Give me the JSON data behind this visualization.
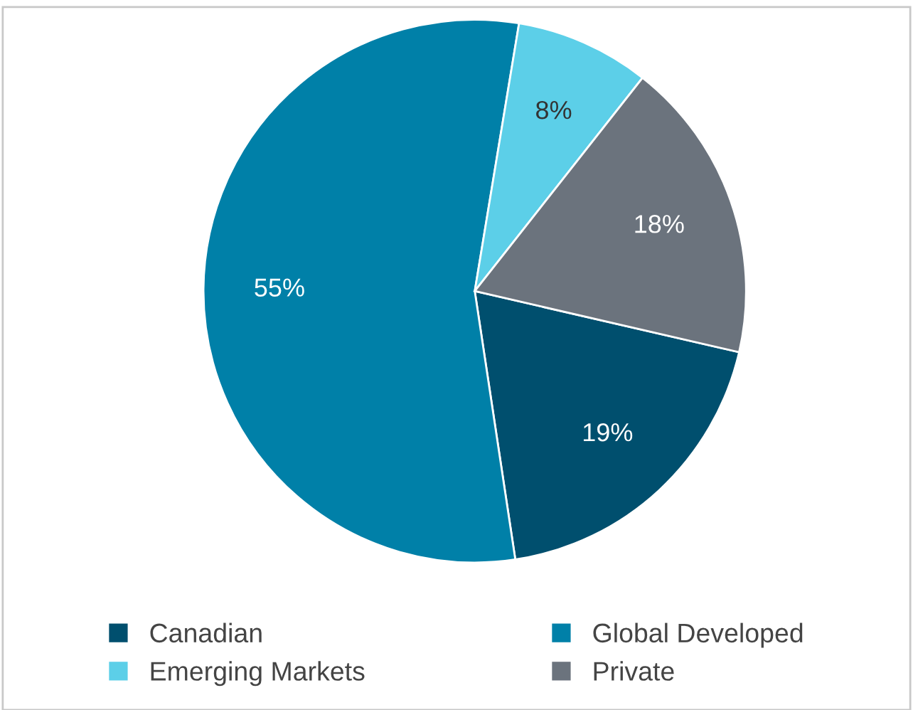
{
  "chart_data": {
    "type": "pie",
    "categories": [
      "Canadian",
      "Global Developed",
      "Emerging Markets",
      "Private"
    ],
    "values": [
      19,
      55,
      8,
      18
    ],
    "colors": [
      "#004f6e",
      "#0080a8",
      "#5ccfe8",
      "#6b737d"
    ],
    "value_labels": [
      "19%",
      "55%",
      "8%",
      "18%"
    ],
    "legend": "bottom"
  }
}
